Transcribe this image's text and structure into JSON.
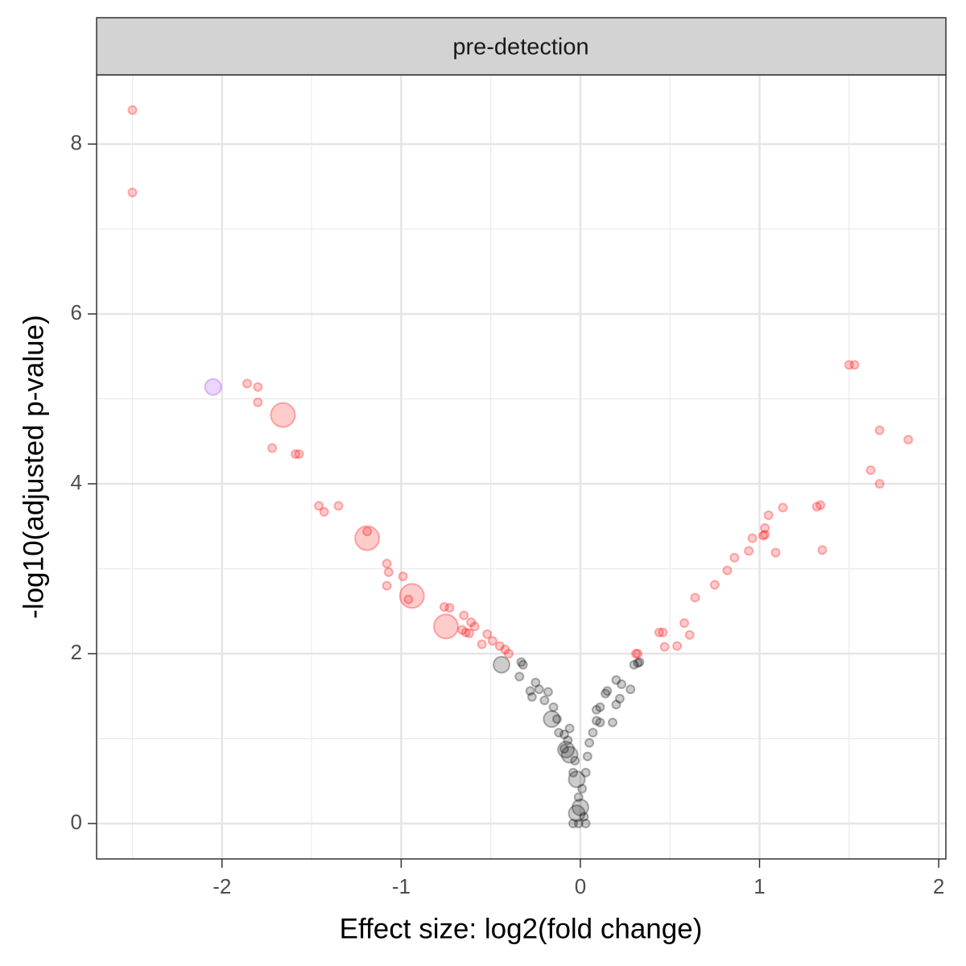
{
  "chart_data": {
    "type": "scatter",
    "title": "pre-detection",
    "x_label": "Effect size: log2(fold change)",
    "y_label": "-log10(adjusted p-value)",
    "xlim": [
      -2.7,
      2.04
    ],
    "ylim": [
      -0.417,
      8.815
    ],
    "xticks": [
      -2,
      -1,
      0,
      1,
      2
    ],
    "yticks": [
      0,
      2,
      4,
      6,
      8
    ],
    "grid": true,
    "alpha": 0.2,
    "series": [
      {
        "color": "#ff0000",
        "x": [
          -2.5,
          -2.5,
          -1.86,
          -1.8,
          -1.8,
          -1.72,
          -1.59,
          -1.57,
          -1.46,
          -1.43,
          -1.35,
          -1.19,
          -1.08,
          -1.07,
          -1.08,
          -0.99,
          -0.96,
          -0.76,
          -0.73,
          -0.65,
          -0.61,
          -0.59,
          -0.66,
          -0.64,
          -0.62,
          -0.55,
          -0.52,
          -0.49,
          -0.45,
          -0.42,
          -0.4,
          -1.66,
          -1.19,
          -0.94,
          -0.75,
          1.5,
          1.53,
          1.67,
          1.83,
          1.62,
          1.67,
          1.05,
          1.13,
          1.32,
          1.34,
          1.03,
          1.02,
          1.03,
          0.96,
          0.94,
          1.09,
          1.35,
          0.86,
          0.82,
          0.75,
          0.64,
          0.58,
          0.61,
          0.46,
          0.44,
          0.47,
          0.54,
          0.31,
          0.32
        ],
        "values": [
          8.4,
          7.43,
          5.18,
          5.14,
          4.96,
          4.42,
          4.35,
          4.35,
          3.74,
          3.67,
          3.74,
          3.44,
          3.06,
          2.96,
          2.8,
          2.91,
          2.64,
          2.55,
          2.54,
          2.45,
          2.37,
          2.32,
          2.28,
          2.25,
          2.24,
          2.11,
          2.23,
          2.15,
          2.09,
          2.05,
          2.0,
          4.81,
          3.36,
          2.68,
          2.32,
          5.4,
          5.4,
          4.63,
          4.52,
          4.16,
          4.0,
          3.63,
          3.72,
          3.73,
          3.75,
          3.48,
          3.39,
          3.4,
          3.36,
          3.21,
          3.19,
          3.22,
          3.13,
          2.98,
          2.81,
          2.66,
          2.36,
          2.22,
          2.25,
          2.25,
          2.08,
          2.09,
          2.0,
          2.0
        ],
        "sizes": [
          1,
          1,
          1,
          1,
          1,
          1,
          1,
          1,
          1,
          1,
          1,
          1,
          1,
          1,
          1,
          1,
          1,
          1,
          1,
          1,
          1,
          1,
          1,
          1,
          1,
          1,
          1,
          1,
          1,
          1,
          1,
          3,
          3,
          3,
          3,
          1,
          1,
          1,
          1,
          1,
          1,
          1,
          1,
          1,
          1,
          1,
          1,
          1,
          1,
          1,
          1,
          1,
          1,
          1,
          1,
          1,
          1,
          1,
          1,
          1,
          1,
          1,
          1,
          1
        ]
      },
      {
        "color": "#9a30f0",
        "x": [
          -2.05
        ],
        "values": [
          5.14
        ],
        "sizes": [
          2
        ]
      },
      {
        "color": "#000000",
        "x": [
          -0.44,
          -0.33,
          -0.32,
          -0.34,
          -0.25,
          -0.28,
          -0.23,
          -0.18,
          -0.2,
          -0.15,
          -0.27,
          -0.16,
          -0.13,
          -0.12,
          -0.09,
          -0.08,
          -0.06,
          -0.04,
          -0.02,
          -0.01,
          0.0,
          0.02,
          -0.01,
          0.03,
          -0.04,
          -0.03,
          -0.07,
          0.01,
          0.03,
          0.04,
          0.05,
          0.07,
          0.09,
          0.09,
          0.11,
          0.11,
          0.18,
          0.14,
          0.15,
          0.2,
          0.22,
          0.2,
          0.23,
          0.28,
          0.32,
          0.3,
          0.33,
          -0.06,
          -0.09,
          -0.02
        ],
        "values": [
          1.87,
          1.9,
          1.87,
          1.73,
          1.66,
          1.56,
          1.58,
          1.55,
          1.45,
          1.37,
          1.49,
          1.23,
          1.23,
          1.07,
          1.05,
          0.87,
          0.81,
          0.6,
          0.52,
          0.31,
          0.19,
          0.08,
          0.0,
          0.0,
          0.0,
          0.74,
          0.98,
          0.41,
          0.6,
          0.79,
          0.95,
          1.07,
          1.21,
          1.34,
          1.37,
          1.19,
          1.19,
          1.53,
          1.56,
          1.4,
          1.47,
          1.69,
          1.64,
          1.58,
          1.89,
          1.87,
          1.9,
          1.12,
          0.88,
          0.12
        ],
        "sizes": [
          2,
          1,
          1,
          1,
          1,
          1,
          1,
          1,
          1,
          1,
          1,
          2,
          1,
          1,
          1,
          2,
          2,
          1,
          2,
          1,
          2,
          1,
          1,
          1,
          1,
          1,
          1,
          1,
          1,
          1,
          1,
          1,
          1,
          1,
          1,
          1,
          1,
          1,
          1,
          1,
          1,
          1,
          1,
          1,
          1,
          1,
          1,
          1,
          1,
          2
        ]
      }
    ]
  }
}
